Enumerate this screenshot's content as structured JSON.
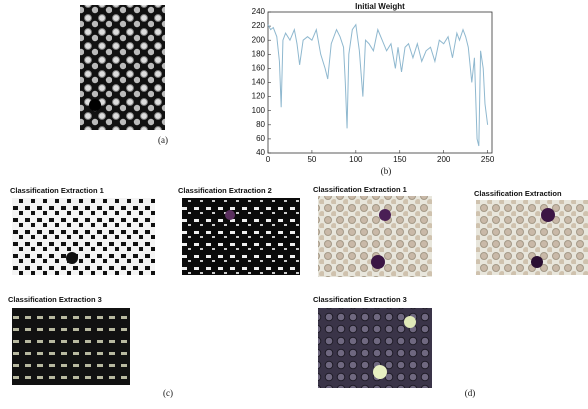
{
  "chart_data": {
    "type": "line",
    "title": "Initial Weight",
    "color": "#8fb8cf",
    "x": [
      0,
      3,
      6,
      10,
      13,
      15,
      17,
      20,
      25,
      30,
      33,
      36,
      40,
      45,
      50,
      55,
      60,
      65,
      68,
      72,
      78,
      82,
      86,
      88,
      90,
      92,
      96,
      100,
      104,
      108,
      111,
      115,
      120,
      125,
      130,
      135,
      140,
      145,
      148,
      152,
      156,
      160,
      165,
      170,
      175,
      180,
      185,
      190,
      195,
      200,
      205,
      210,
      215,
      218,
      222,
      225,
      228,
      232,
      235,
      238,
      240,
      242,
      245,
      247,
      250
    ],
    "values": [
      222,
      215,
      218,
      205,
      170,
      105,
      200,
      210,
      200,
      215,
      195,
      165,
      200,
      205,
      200,
      215,
      180,
      160,
      145,
      195,
      215,
      205,
      190,
      140,
      75,
      180,
      215,
      222,
      185,
      120,
      200,
      195,
      185,
      215,
      200,
      185,
      195,
      160,
      190,
      155,
      190,
      195,
      175,
      195,
      170,
      185,
      190,
      170,
      200,
      195,
      205,
      175,
      210,
      200,
      215,
      205,
      190,
      140,
      175,
      60,
      50,
      185,
      160,
      110,
      80
    ],
    "xlim": [
      0,
      255
    ],
    "xticks": [
      0,
      50,
      100,
      150,
      200,
      250
    ],
    "ylim": [
      40,
      240
    ],
    "yticks": [
      40,
      60,
      80,
      100,
      120,
      140,
      160,
      180,
      200,
      220,
      240
    ]
  },
  "figure": {
    "label_a": "(a)",
    "label_b": "(b)",
    "label_c": "(c)",
    "label_d": "(d)",
    "c1": "Classification  Extraction 1",
    "c2": "Classification  Extraction 2",
    "c3": "Classification  Extraction 3",
    "d1": "Classification  Extraction 1",
    "d2": "Classification  Extraction",
    "d3": "Classification  Extraction 3"
  }
}
